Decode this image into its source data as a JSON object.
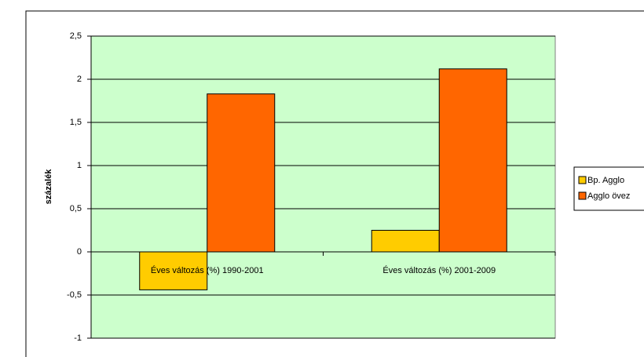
{
  "chart_data": {
    "type": "bar",
    "y_label": "százalék",
    "categories": [
      "Éves változás (%) 1990-2001",
      "Éves változás (%) 2001-2009"
    ],
    "series": [
      {
        "name": "Bp. Agglo",
        "color": "#ffcc00",
        "values": [
          -0.44,
          0.25
        ]
      },
      {
        "name": "Agglo övez",
        "color": "#ff6600",
        "values": [
          1.83,
          2.12
        ]
      }
    ],
    "ylim": [
      -1,
      2.5
    ],
    "yticks": [
      -1,
      {
        "value": -0.5,
        "label": "-0,5"
      },
      0,
      {
        "value": 0.5,
        "label": "0,5"
      },
      1,
      {
        "value": 1.5,
        "label": "1,5"
      },
      2,
      {
        "value": 2.5,
        "label": "2,5"
      }
    ],
    "grid": true,
    "plot_background": "#ccffcc",
    "legend": "right"
  }
}
